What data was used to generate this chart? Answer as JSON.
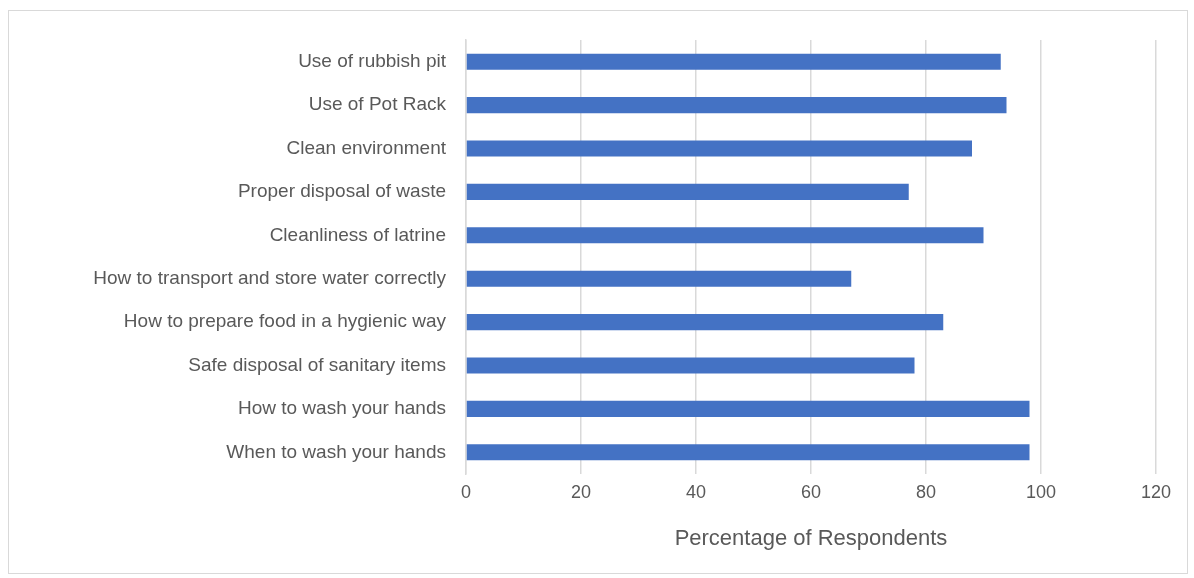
{
  "chart_data": {
    "type": "bar",
    "orientation": "horizontal",
    "xlabel": "Percentage of Respondents",
    "categories": [
      "Use of rubbish pit",
      "Use of Pot Rack",
      "Clean environment",
      "Proper disposal of waste",
      "Cleanliness of latrine",
      "How to transport and store water correctly",
      "How to prepare food in a hygienic way",
      "Safe disposal of sanitary items",
      "How to wash your hands",
      "When to wash your hands"
    ],
    "values": [
      93,
      94,
      88,
      77,
      90,
      67,
      83,
      78,
      98,
      98
    ],
    "color": "#4472c4",
    "xlim": [
      0,
      120
    ],
    "xticks": [
      0,
      20,
      40,
      60,
      80,
      100,
      120
    ],
    "grid": "x",
    "legend": false
  }
}
